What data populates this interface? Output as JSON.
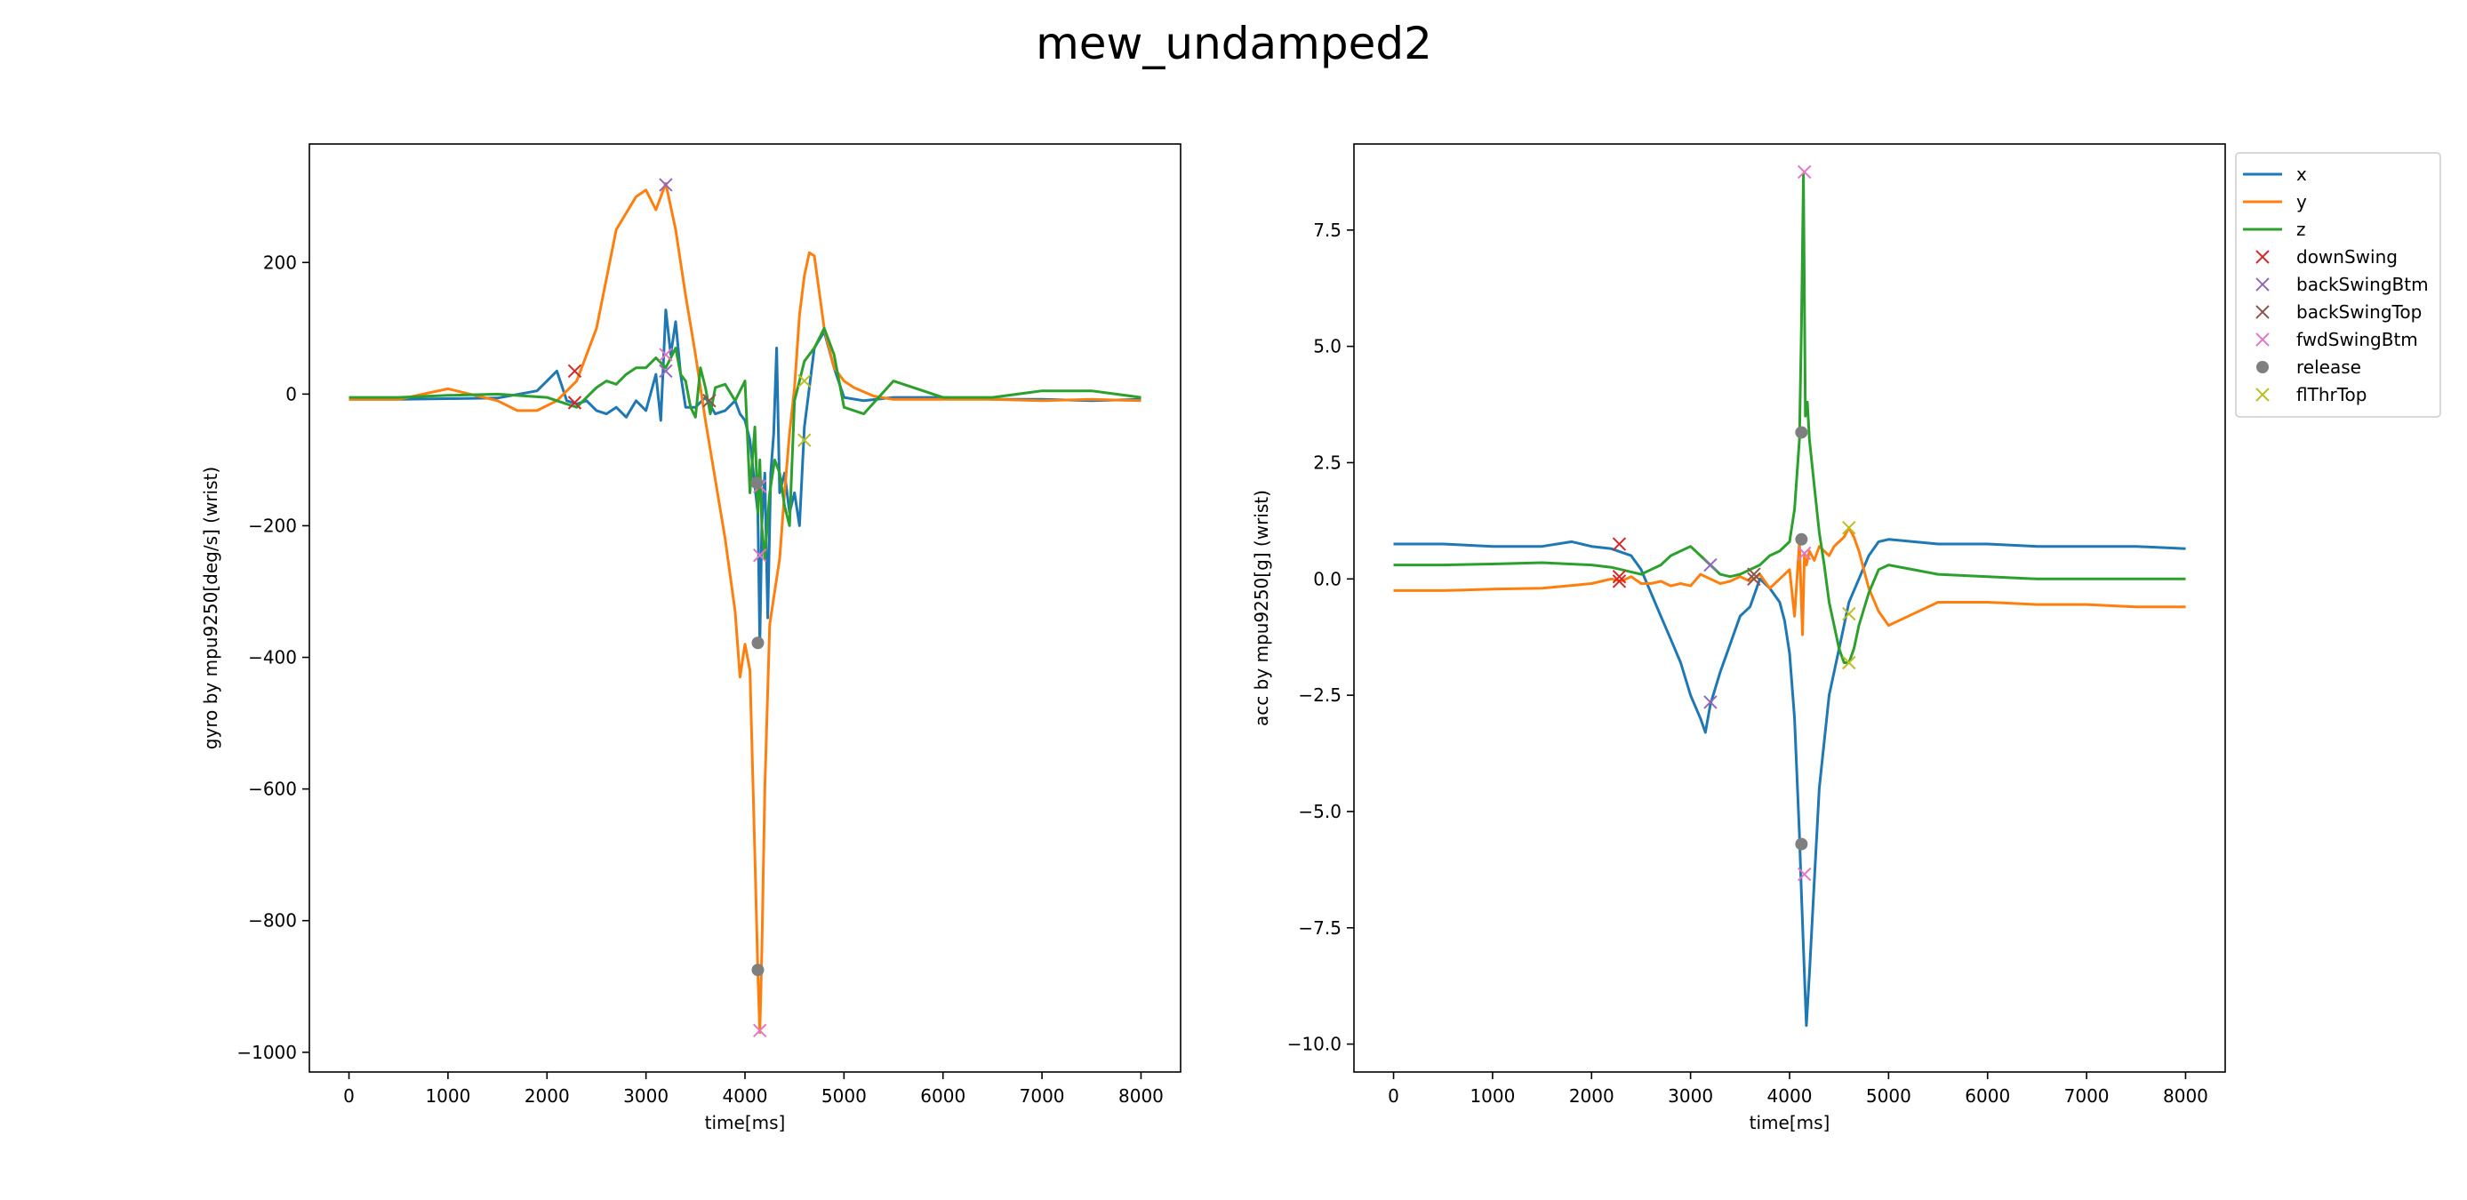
{
  "figure": {
    "title": "mew_undamped2"
  },
  "colors": {
    "x": "#1f77b4",
    "y": "#ff7f0e",
    "z": "#2ca02c",
    "downSwing": "#d62728",
    "backSwingBtm": "#9467bd",
    "backSwingTop": "#8c564b",
    "fwdSwingBtm": "#e377c2",
    "release": "#7f7f7f",
    "flThrTop": "#bcbd22"
  },
  "legend": {
    "placement": "outside-right-top",
    "entries": [
      {
        "key": "x",
        "label": "x",
        "kind": "line"
      },
      {
        "key": "y",
        "label": "y",
        "kind": "line"
      },
      {
        "key": "z",
        "label": "z",
        "kind": "line"
      },
      {
        "key": "downSwing",
        "label": "downSwing",
        "kind": "x"
      },
      {
        "key": "backSwingBtm",
        "label": "backSwingBtm",
        "kind": "x"
      },
      {
        "key": "backSwingTop",
        "label": "backSwingTop",
        "kind": "x"
      },
      {
        "key": "fwdSwingBtm",
        "label": "fwdSwingBtm",
        "kind": "x"
      },
      {
        "key": "release",
        "label": "release",
        "kind": "dot"
      },
      {
        "key": "flThrTop",
        "label": "flThrTop",
        "kind": "x"
      }
    ]
  },
  "chart_data": [
    {
      "type": "line",
      "xlabel": "time[ms]",
      "ylabel": "gyro by mpu9250[deg/s] (wrist)",
      "xlim": [
        -400,
        8400
      ],
      "ylim": [
        -1030,
        380
      ],
      "xticks": [
        0,
        1000,
        2000,
        3000,
        4000,
        5000,
        6000,
        7000,
        8000
      ],
      "yticks": [
        -1000,
        -800,
        -600,
        -400,
        -200,
        0,
        200
      ],
      "grid": false,
      "series": [
        {
          "name": "x",
          "color_key": "x",
          "x": [
            0,
            500,
            1000,
            1500,
            1900,
            2000,
            2100,
            2200,
            2300,
            2400,
            2500,
            2600,
            2700,
            2800,
            2900,
            3000,
            3100,
            3150,
            3200,
            3250,
            3300,
            3350,
            3400,
            3500,
            3600,
            3700,
            3800,
            3900,
            3950,
            4000,
            4050,
            4100,
            4130,
            4150,
            4170,
            4200,
            4230,
            4260,
            4290,
            4320,
            4350,
            4400,
            4450,
            4500,
            4550,
            4600,
            4700,
            4800,
            4900,
            5000,
            5200,
            5500,
            6000,
            6500,
            7000,
            7500,
            8000
          ],
          "y": [
            -8,
            -8,
            -7,
            -6,
            5,
            20,
            35,
            -10,
            -15,
            -10,
            -25,
            -30,
            -20,
            -35,
            -10,
            -25,
            30,
            -40,
            128,
            60,
            110,
            30,
            -20,
            -20,
            -5,
            -30,
            -25,
            -10,
            -30,
            -40,
            -70,
            -140,
            -180,
            -380,
            -200,
            -120,
            -340,
            -120,
            -60,
            70,
            -150,
            -120,
            -180,
            -150,
            -200,
            -50,
            70,
            95,
            40,
            -5,
            -10,
            -5,
            -5,
            -8,
            -8,
            -10,
            -8
          ]
        },
        {
          "name": "y",
          "color_key": "y",
          "x": [
            0,
            500,
            1000,
            1500,
            1700,
            1900,
            2100,
            2300,
            2500,
            2700,
            2900,
            3000,
            3100,
            3200,
            3300,
            3400,
            3500,
            3600,
            3700,
            3800,
            3900,
            3950,
            4000,
            4050,
            4100,
            4130,
            4150,
            4170,
            4200,
            4250,
            4300,
            4350,
            4400,
            4450,
            4500,
            4550,
            4600,
            4650,
            4700,
            4800,
            4900,
            5000,
            5100,
            5300,
            5500,
            6000,
            6500,
            7000,
            7500,
            8000
          ],
          "y": [
            -8,
            -8,
            8,
            -10,
            -25,
            -25,
            -10,
            20,
            100,
            250,
            300,
            310,
            280,
            320,
            250,
            150,
            60,
            -40,
            -130,
            -220,
            -330,
            -430,
            -380,
            -420,
            -700,
            -880,
            -970,
            -850,
            -600,
            -350,
            -300,
            -250,
            -150,
            -60,
            10,
            120,
            180,
            215,
            210,
            100,
            40,
            20,
            10,
            -3,
            -8,
            -8,
            -8,
            -10,
            -8,
            -10
          ]
        },
        {
          "name": "z",
          "color_key": "z",
          "x": [
            0,
            500,
            1000,
            1500,
            2000,
            2100,
            2200,
            2300,
            2400,
            2500,
            2600,
            2700,
            2800,
            2900,
            3000,
            3100,
            3200,
            3250,
            3300,
            3350,
            3400,
            3450,
            3500,
            3550,
            3600,
            3650,
            3700,
            3800,
            3900,
            4000,
            4050,
            4100,
            4130,
            4150,
            4170,
            4200,
            4250,
            4300,
            4350,
            4400,
            4450,
            4500,
            4550,
            4600,
            4700,
            4800,
            4900,
            5000,
            5200,
            5500,
            6000,
            6500,
            7000,
            7500,
            8000
          ],
          "y": [
            -5,
            -5,
            -2,
            0,
            -5,
            -10,
            -15,
            -20,
            -5,
            10,
            20,
            15,
            30,
            40,
            40,
            55,
            40,
            55,
            70,
            30,
            20,
            -20,
            -35,
            40,
            10,
            -30,
            10,
            15,
            -10,
            20,
            -150,
            -50,
            -180,
            -100,
            -200,
            -250,
            -150,
            -100,
            -120,
            -170,
            -200,
            -10,
            20,
            50,
            70,
            100,
            60,
            -20,
            -30,
            20,
            -5,
            -5,
            5,
            5,
            -5
          ]
        }
      ],
      "events": [
        {
          "key": "downSwing",
          "marker": "x",
          "points": [
            [
              2280,
              35
            ],
            [
              2280,
              -13
            ]
          ]
        },
        {
          "key": "backSwingBtm",
          "marker": "x",
          "points": [
            [
              3200,
              318
            ],
            [
              3200,
              35
            ]
          ]
        },
        {
          "key": "backSwingTop",
          "marker": "x",
          "points": [
            [
              3640,
              -10
            ]
          ]
        },
        {
          "key": "fwdSwingBtm",
          "marker": "x",
          "points": [
            [
              4150,
              -967
            ],
            [
              4150,
              -245
            ],
            [
              4150,
              -140
            ],
            [
              3200,
              60
            ]
          ]
        },
        {
          "key": "release",
          "marker": "dot",
          "points": [
            [
              4130,
              -875
            ],
            [
              4130,
              -378
            ],
            [
              4120,
              -135
            ]
          ]
        },
        {
          "key": "flThrTop",
          "marker": "x",
          "points": [
            [
              4600,
              -70
            ],
            [
              4600,
              20
            ]
          ]
        }
      ]
    },
    {
      "type": "line",
      "xlabel": "time[ms]",
      "ylabel": "acc by mpu9250[g] (wrist)",
      "xlim": [
        -400,
        8400
      ],
      "ylim": [
        -10.6,
        9.35
      ],
      "xticks": [
        0,
        1000,
        2000,
        3000,
        4000,
        5000,
        6000,
        7000,
        8000
      ],
      "yticks": [
        -10.0,
        -7.5,
        -5.0,
        -2.5,
        0.0,
        2.5,
        5.0,
        7.5
      ],
      "grid": false,
      "series": [
        {
          "name": "x",
          "color_key": "x",
          "x": [
            0,
            500,
            1000,
            1500,
            1800,
            2000,
            2200,
            2400,
            2500,
            2600,
            2700,
            2800,
            2900,
            3000,
            3100,
            3150,
            3200,
            3300,
            3400,
            3500,
            3600,
            3700,
            3800,
            3900,
            3950,
            4000,
            4050,
            4100,
            4120,
            4150,
            4170,
            4200,
            4250,
            4300,
            4400,
            4500,
            4600,
            4700,
            4800,
            4900,
            5000,
            5500,
            6000,
            6500,
            7000,
            7500,
            8000
          ],
          "y": [
            0.75,
            0.75,
            0.7,
            0.7,
            0.8,
            0.7,
            0.65,
            0.5,
            0.2,
            -0.3,
            -0.8,
            -1.3,
            -1.8,
            -2.5,
            -3.0,
            -3.3,
            -2.7,
            -2.0,
            -1.4,
            -0.8,
            -0.6,
            0,
            -0.2,
            -0.5,
            -0.9,
            -1.6,
            -3.0,
            -5.5,
            -6.8,
            -8.5,
            -9.6,
            -8.5,
            -6.5,
            -4.5,
            -2.5,
            -1.5,
            -0.5,
            0,
            0.5,
            0.8,
            0.85,
            0.75,
            0.75,
            0.7,
            0.7,
            0.7,
            0.65
          ]
        },
        {
          "name": "y",
          "color_key": "y",
          "x": [
            0,
            500,
            1000,
            1500,
            2000,
            2200,
            2300,
            2400,
            2500,
            2600,
            2700,
            2800,
            2900,
            3000,
            3100,
            3200,
            3300,
            3400,
            3500,
            3600,
            3700,
            3800,
            3900,
            4000,
            4050,
            4100,
            4130,
            4150,
            4170,
            4200,
            4250,
            4300,
            4400,
            4450,
            4500,
            4550,
            4600,
            4650,
            4700,
            4800,
            4900,
            5000,
            5200,
            5500,
            6000,
            6500,
            7000,
            7500,
            8000
          ],
          "y": [
            -0.25,
            -0.25,
            -0.22,
            -0.2,
            -0.1,
            0,
            -0.05,
            0.05,
            -0.1,
            -0.1,
            -0.05,
            -0.15,
            -0.1,
            -0.15,
            0.1,
            0,
            -0.1,
            -0.05,
            0.05,
            -0.05,
            0.1,
            -0.2,
            0,
            0.2,
            -0.8,
            0.8,
            -1.2,
            0.5,
            0.3,
            0.6,
            0.4,
            0.7,
            0.5,
            0.7,
            0.8,
            0.9,
            1.1,
            0.9,
            0.6,
            -0.2,
            -0.7,
            -1.0,
            -0.8,
            -0.5,
            -0.5,
            -0.55,
            -0.55,
            -0.6,
            -0.6
          ]
        },
        {
          "name": "z",
          "color_key": "z",
          "x": [
            0,
            500,
            1000,
            1500,
            2000,
            2200,
            2300,
            2400,
            2500,
            2600,
            2700,
            2800,
            2900,
            3000,
            3100,
            3200,
            3300,
            3400,
            3500,
            3600,
            3700,
            3800,
            3900,
            4000,
            4050,
            4100,
            4120,
            4140,
            4150,
            4160,
            4180,
            4200,
            4250,
            4300,
            4350,
            4400,
            4450,
            4500,
            4550,
            4600,
            4650,
            4700,
            4800,
            4900,
            5000,
            5500,
            6000,
            6500,
            7000,
            7500,
            8000
          ],
          "y": [
            0.3,
            0.3,
            0.32,
            0.35,
            0.3,
            0.25,
            0.2,
            0.15,
            0.1,
            0.2,
            0.3,
            0.5,
            0.6,
            0.7,
            0.5,
            0.3,
            0.1,
            0.05,
            0.1,
            0.2,
            0.3,
            0.5,
            0.6,
            0.8,
            1.5,
            3.0,
            5.5,
            8.7,
            6.0,
            3.5,
            3.8,
            3.0,
            2.0,
            1.0,
            0.3,
            -0.5,
            -1.0,
            -1.5,
            -1.8,
            -1.8,
            -1.5,
            -1.0,
            -0.3,
            0.2,
            0.3,
            0.1,
            0.05,
            0,
            0,
            0,
            0
          ]
        }
      ],
      "events": [
        {
          "key": "downSwing",
          "marker": "x",
          "points": [
            [
              2280,
              0.75
            ],
            [
              2280,
              0.05
            ],
            [
              2280,
              -0.05
            ]
          ]
        },
        {
          "key": "backSwingBtm",
          "marker": "x",
          "points": [
            [
              3200,
              -2.65
            ],
            [
              3200,
              0.3
            ]
          ]
        },
        {
          "key": "backSwingTop",
          "marker": "x",
          "points": [
            [
              3640,
              0.1
            ],
            [
              3640,
              0
            ]
          ]
        },
        {
          "key": "fwdSwingBtm",
          "marker": "x",
          "points": [
            [
              4150,
              8.75
            ],
            [
              4150,
              -6.35
            ],
            [
              4150,
              0.55
            ]
          ]
        },
        {
          "key": "release",
          "marker": "dot",
          "points": [
            [
              4120,
              3.15
            ],
            [
              4120,
              0.85
            ],
            [
              4120,
              -5.7
            ]
          ]
        },
        {
          "key": "flThrTop",
          "marker": "x",
          "points": [
            [
              4600,
              1.1
            ],
            [
              4600,
              -1.8
            ],
            [
              4600,
              -0.75
            ]
          ]
        }
      ]
    }
  ]
}
